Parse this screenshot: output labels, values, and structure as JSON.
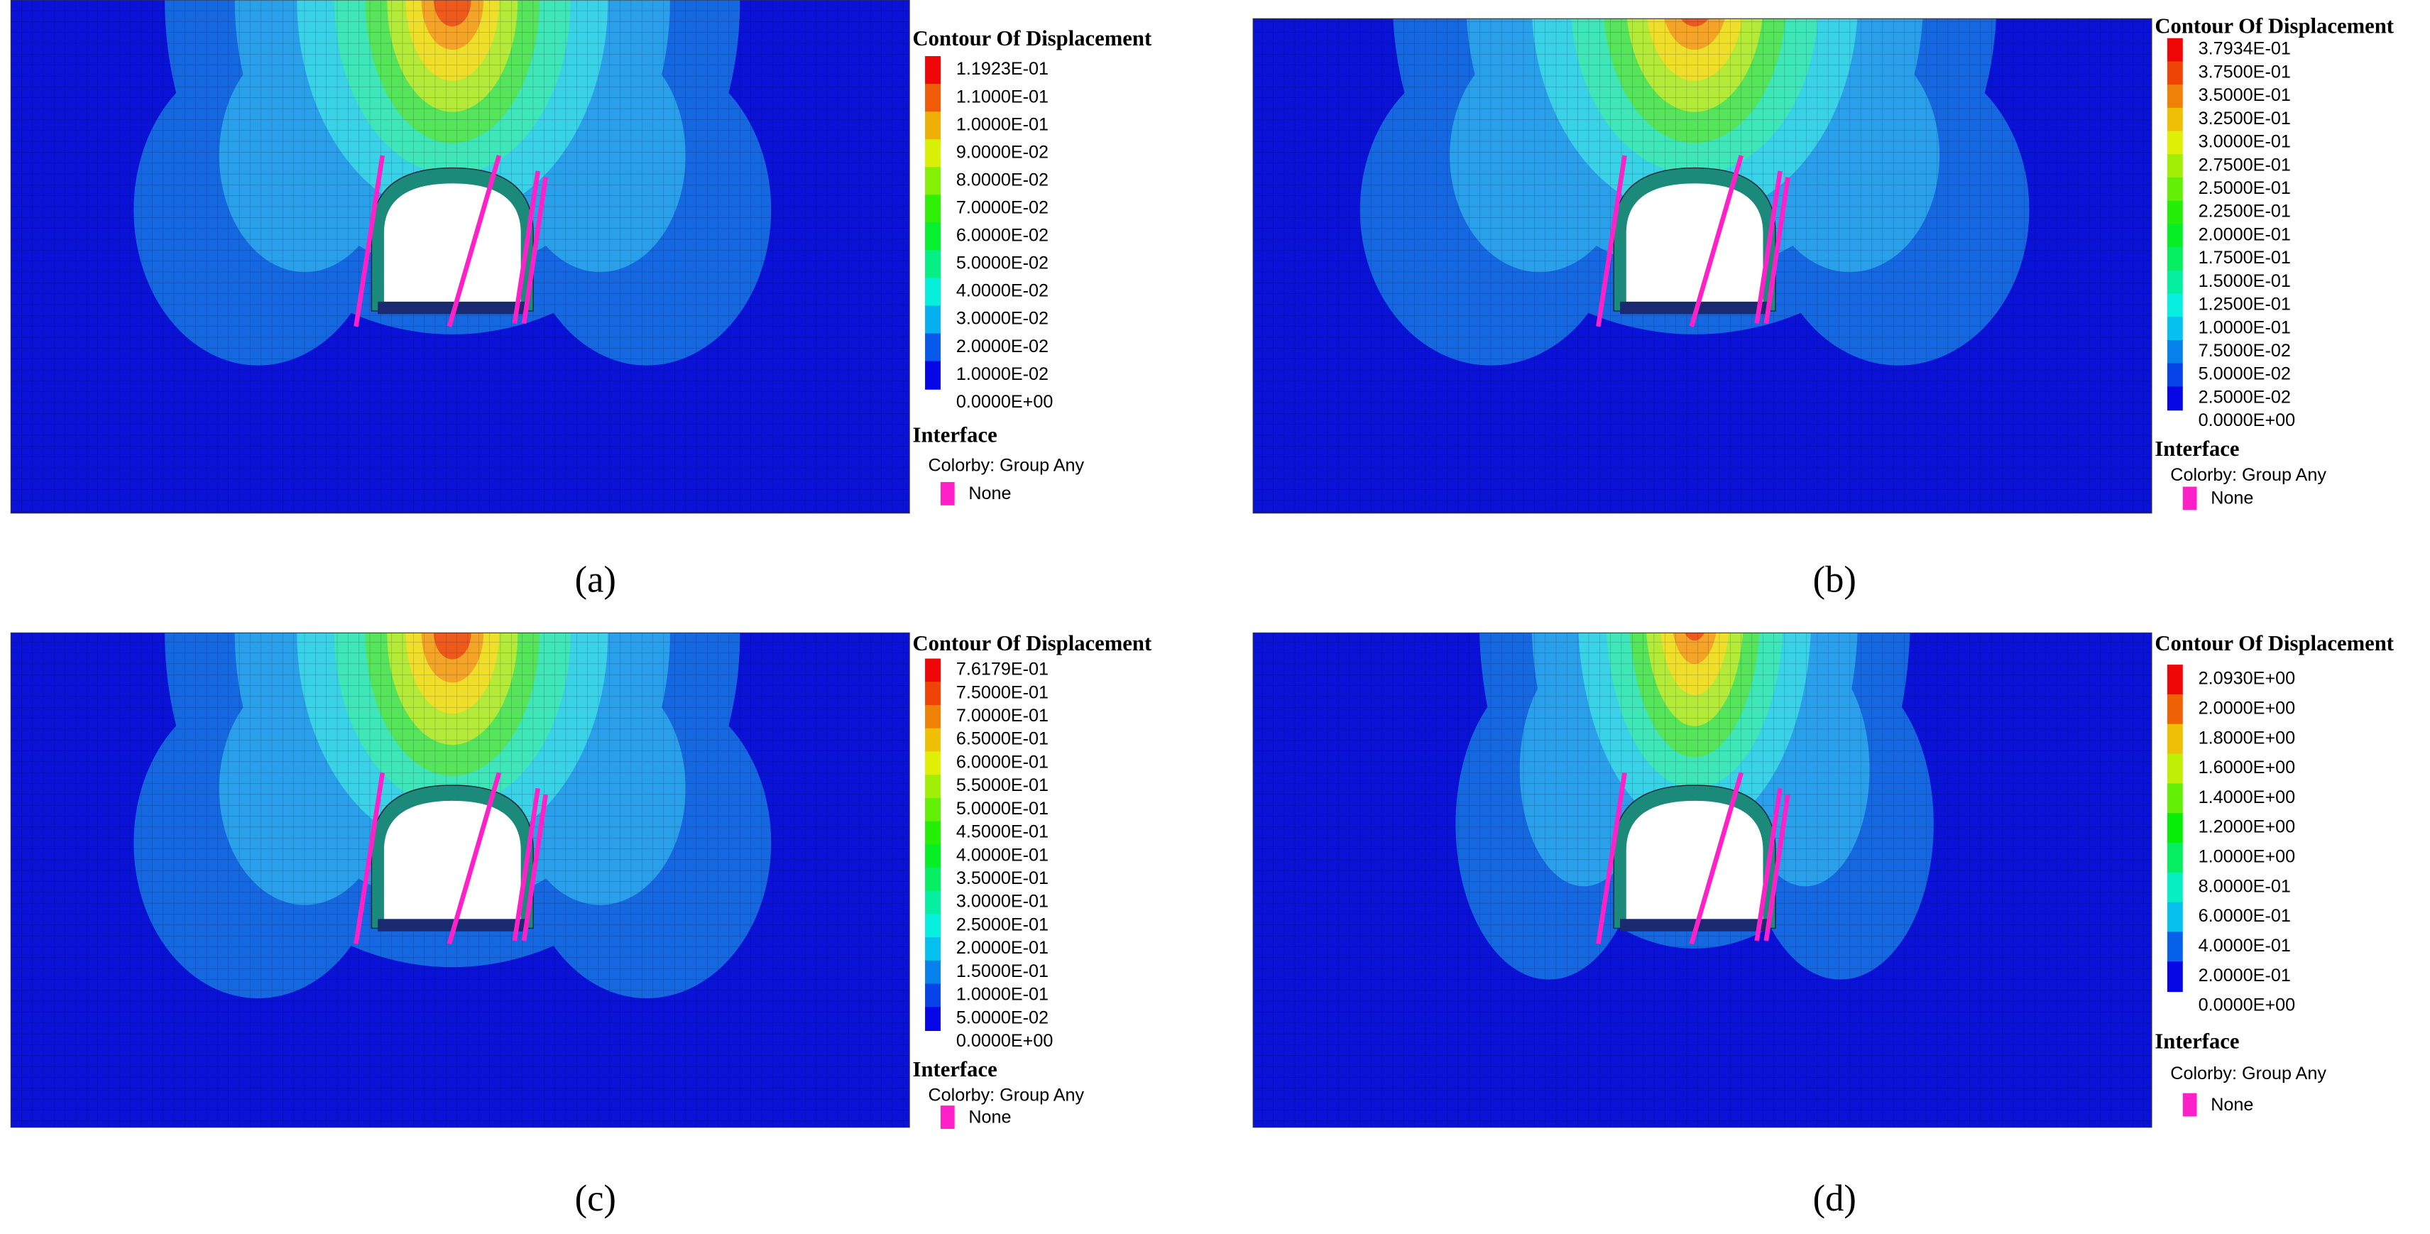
{
  "panels": [
    {
      "legend": {
        "title": "Contour Of Displacement",
        "levels": [
          "1.1923E-01",
          "1.1000E-01",
          "1.0000E-01",
          "9.0000E-02",
          "8.0000E-02",
          "7.0000E-02",
          "6.0000E-02",
          "5.0000E-02",
          "4.0000E-02",
          "3.0000E-02",
          "2.0000E-02",
          "1.0000E-02",
          "0.0000E+00"
        ],
        "interface": "Interface",
        "colorby": "Colorby: Group Any",
        "none": "None"
      },
      "caption": "(a)"
    },
    {
      "legend": {
        "title": "Contour Of Displacement",
        "levels": [
          "3.7934E-01",
          "3.7500E-01",
          "3.5000E-01",
          "3.2500E-01",
          "3.0000E-01",
          "2.7500E-01",
          "2.5000E-01",
          "2.2500E-01",
          "2.0000E-01",
          "1.7500E-01",
          "1.5000E-01",
          "1.2500E-01",
          "1.0000E-01",
          "7.5000E-02",
          "5.0000E-02",
          "2.5000E-02",
          "0.0000E+00"
        ],
        "interface": "Interface",
        "colorby": "Colorby: Group Any",
        "none": "None"
      },
      "caption": "(b)"
    },
    {
      "legend": {
        "title": "Contour Of Displacement",
        "levels": [
          "7.6179E-01",
          "7.5000E-01",
          "7.0000E-01",
          "6.5000E-01",
          "6.0000E-01",
          "5.5000E-01",
          "5.0000E-01",
          "4.5000E-01",
          "4.0000E-01",
          "3.5000E-01",
          "3.0000E-01",
          "2.5000E-01",
          "2.0000E-01",
          "1.5000E-01",
          "1.0000E-01",
          "5.0000E-02",
          "0.0000E+00"
        ],
        "interface": "Interface",
        "colorby": "Colorby: Group Any",
        "none": "None"
      },
      "caption": "(c)"
    },
    {
      "legend": {
        "title": "Contour Of Displacement",
        "levels": [
          "2.0930E+00",
          "2.0000E+00",
          "1.8000E+00",
          "1.6000E+00",
          "1.4000E+00",
          "1.2000E+00",
          "1.0000E+00",
          "8.0000E-01",
          "6.0000E-01",
          "4.0000E-01",
          "2.0000E-01",
          "0.0000E+00"
        ],
        "interface": "Interface",
        "colorby": "Colorby: Group Any",
        "none": "None"
      },
      "caption": "(d)"
    }
  ]
}
